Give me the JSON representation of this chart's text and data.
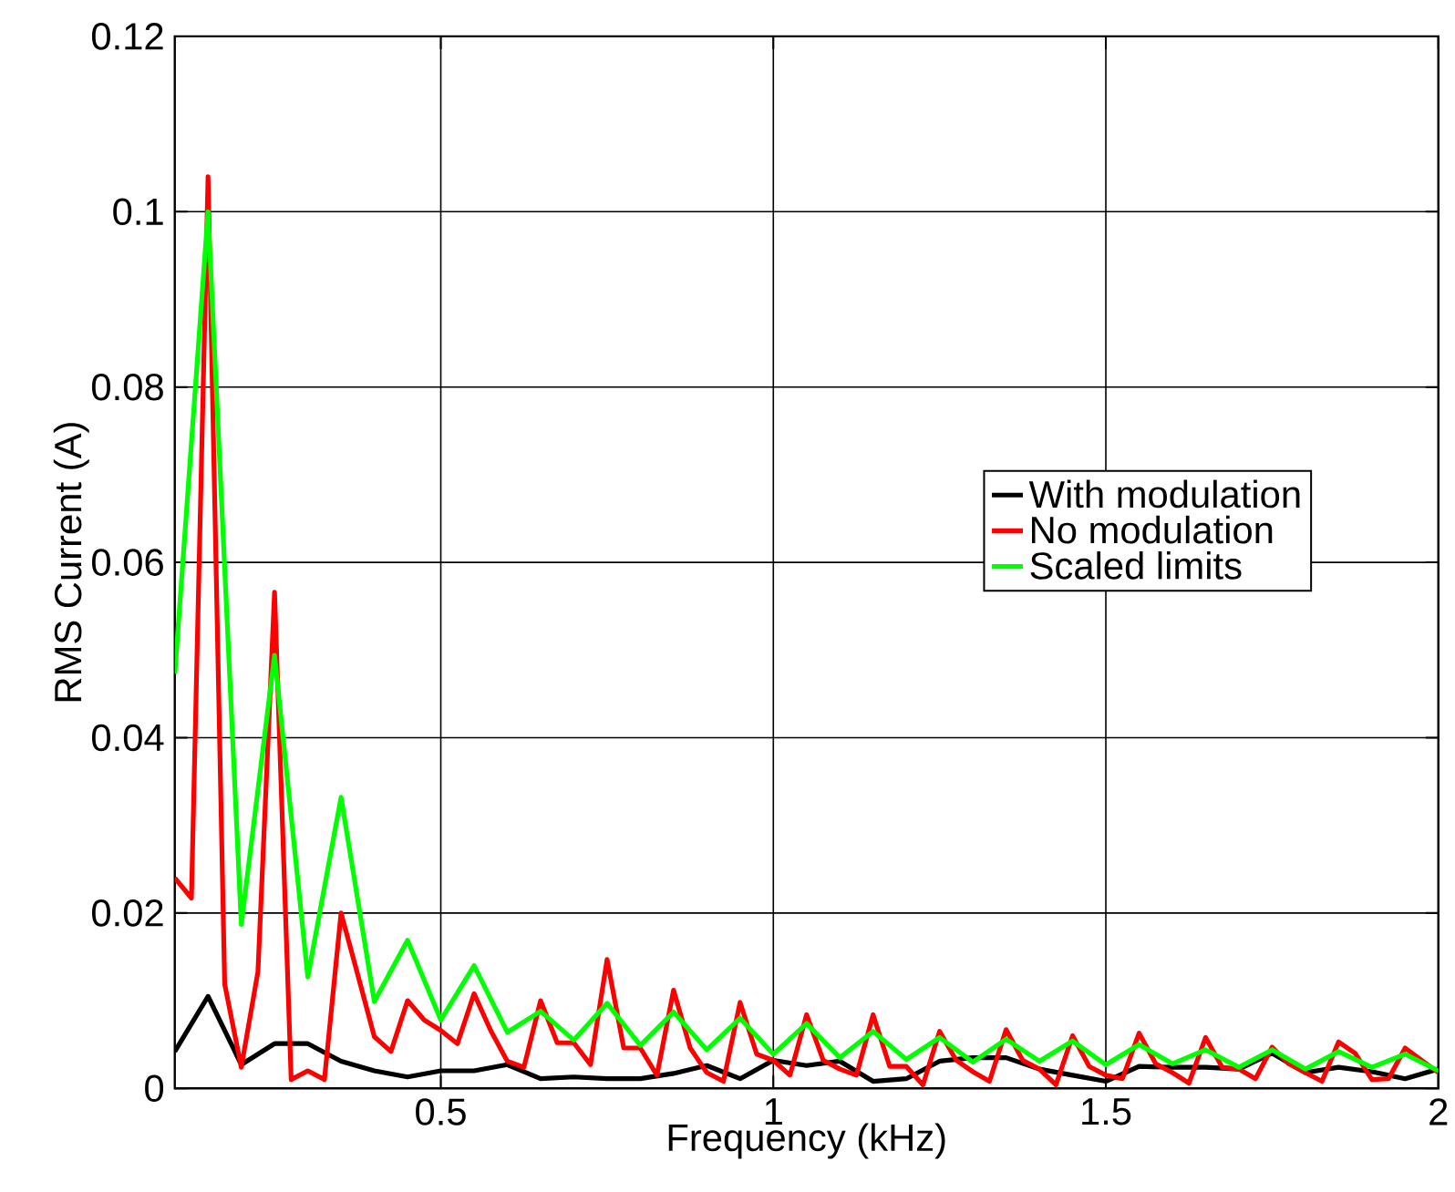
{
  "chart_data": {
    "type": "line",
    "xlabel": "Frequency (kHz)",
    "ylabel": "RMS Current (A)",
    "xlim": [
      0.1,
      2
    ],
    "ylim": [
      0,
      0.12
    ],
    "xticks": [
      0.5,
      1,
      1.5,
      2
    ],
    "yticks": [
      0,
      0.02,
      0.04,
      0.06,
      0.08,
      0.1,
      0.12
    ],
    "grid": true,
    "legend": "right",
    "line_style": "solid",
    "marker": "none",
    "series": [
      {
        "name": "With modulation",
        "color": "#000000",
        "x": [
          0.1,
          0.15,
          0.2,
          0.25,
          0.3,
          0.35,
          0.4,
          0.45,
          0.5,
          0.55,
          0.6,
          0.65,
          0.7,
          0.75,
          0.8,
          0.85,
          0.9,
          0.95,
          1.0,
          1.05,
          1.1,
          1.15,
          1.2,
          1.25,
          1.3,
          1.35,
          1.4,
          1.45,
          1.5,
          1.55,
          1.6,
          1.65,
          1.7,
          1.75,
          1.8,
          1.85,
          1.9,
          1.95,
          2.0
        ],
        "values": [
          0.0042,
          0.0105,
          0.0027,
          0.0051,
          0.0051,
          0.0031,
          0.002,
          0.0013,
          0.002,
          0.002,
          0.0027,
          0.0011,
          0.0013,
          0.0011,
          0.0011,
          0.0017,
          0.0026,
          0.0011,
          0.0032,
          0.0026,
          0.0031,
          0.0008,
          0.0011,
          0.0031,
          0.0035,
          0.0035,
          0.0022,
          0.0015,
          0.0008,
          0.0025,
          0.0024,
          0.0024,
          0.0022,
          0.004,
          0.0018,
          0.0024,
          0.0019,
          0.0011,
          0.0022
        ]
      },
      {
        "name": "No modulation",
        "color": "#ff0000",
        "x": [
          0.1,
          0.125,
          0.15,
          0.175,
          0.2,
          0.225,
          0.25,
          0.275,
          0.3,
          0.325,
          0.35,
          0.375,
          0.4,
          0.425,
          0.45,
          0.475,
          0.5,
          0.525,
          0.55,
          0.575,
          0.6,
          0.625,
          0.65,
          0.675,
          0.7,
          0.725,
          0.75,
          0.775,
          0.8,
          0.825,
          0.85,
          0.875,
          0.9,
          0.925,
          0.95,
          0.975,
          1.0,
          1.025,
          1.05,
          1.075,
          1.1,
          1.125,
          1.15,
          1.175,
          1.2,
          1.225,
          1.25,
          1.275,
          1.3,
          1.325,
          1.35,
          1.375,
          1.4,
          1.425,
          1.45,
          1.475,
          1.5,
          1.525,
          1.55,
          1.575,
          1.6,
          1.625,
          1.65,
          1.675,
          1.7,
          1.725,
          1.75,
          1.775,
          1.8,
          1.825,
          1.85,
          1.875,
          1.9,
          1.925,
          1.95,
          1.975,
          2.0
        ],
        "values": [
          0.024,
          0.0217,
          0.104,
          0.0119,
          0.0024,
          0.0133,
          0.0566,
          0.001,
          0.002,
          0.001,
          0.02,
          0.013,
          0.0059,
          0.0042,
          0.01,
          0.0078,
          0.0066,
          0.0051,
          0.0108,
          0.0066,
          0.0031,
          0.0024,
          0.01,
          0.0052,
          0.0052,
          0.0027,
          0.0147,
          0.0046,
          0.0046,
          0.0015,
          0.0112,
          0.0046,
          0.0018,
          0.0008,
          0.0098,
          0.0039,
          0.0032,
          0.0015,
          0.0084,
          0.0032,
          0.0022,
          0.0015,
          0.0084,
          0.0025,
          0.0025,
          0.0004,
          0.0065,
          0.0032,
          0.0019,
          0.0008,
          0.0067,
          0.0032,
          0.0022,
          0.0004,
          0.006,
          0.0025,
          0.0015,
          0.0011,
          0.0063,
          0.0028,
          0.0018,
          0.0006,
          0.0058,
          0.0024,
          0.0022,
          0.0011,
          0.0047,
          0.0028,
          0.0018,
          0.0008,
          0.0053,
          0.004,
          0.001,
          0.0011,
          0.0046,
          0.0032,
          0.0018
        ]
      },
      {
        "name": "Scaled limits",
        "color": "#00ff00",
        "x": [
          0.1,
          0.15,
          0.2,
          0.25,
          0.3,
          0.35,
          0.4,
          0.45,
          0.5,
          0.55,
          0.6,
          0.65,
          0.7,
          0.75,
          0.8,
          0.85,
          0.9,
          0.95,
          1.0,
          1.05,
          1.1,
          1.15,
          1.2,
          1.25,
          1.3,
          1.35,
          1.4,
          1.45,
          1.5,
          1.55,
          1.6,
          1.65,
          1.7,
          1.75,
          1.8,
          1.85,
          1.9,
          1.95,
          2.0
        ],
        "values": [
          0.0473,
          0.1,
          0.0187,
          0.0494,
          0.0127,
          0.0332,
          0.0099,
          0.0169,
          0.0078,
          0.014,
          0.0064,
          0.0088,
          0.0055,
          0.0097,
          0.0049,
          0.0087,
          0.0044,
          0.008,
          0.0039,
          0.0074,
          0.0035,
          0.0065,
          0.0033,
          0.0058,
          0.003,
          0.0056,
          0.0031,
          0.0054,
          0.0027,
          0.005,
          0.0028,
          0.0044,
          0.0024,
          0.0044,
          0.0022,
          0.0042,
          0.0024,
          0.0039,
          0.002
        ]
      }
    ]
  }
}
